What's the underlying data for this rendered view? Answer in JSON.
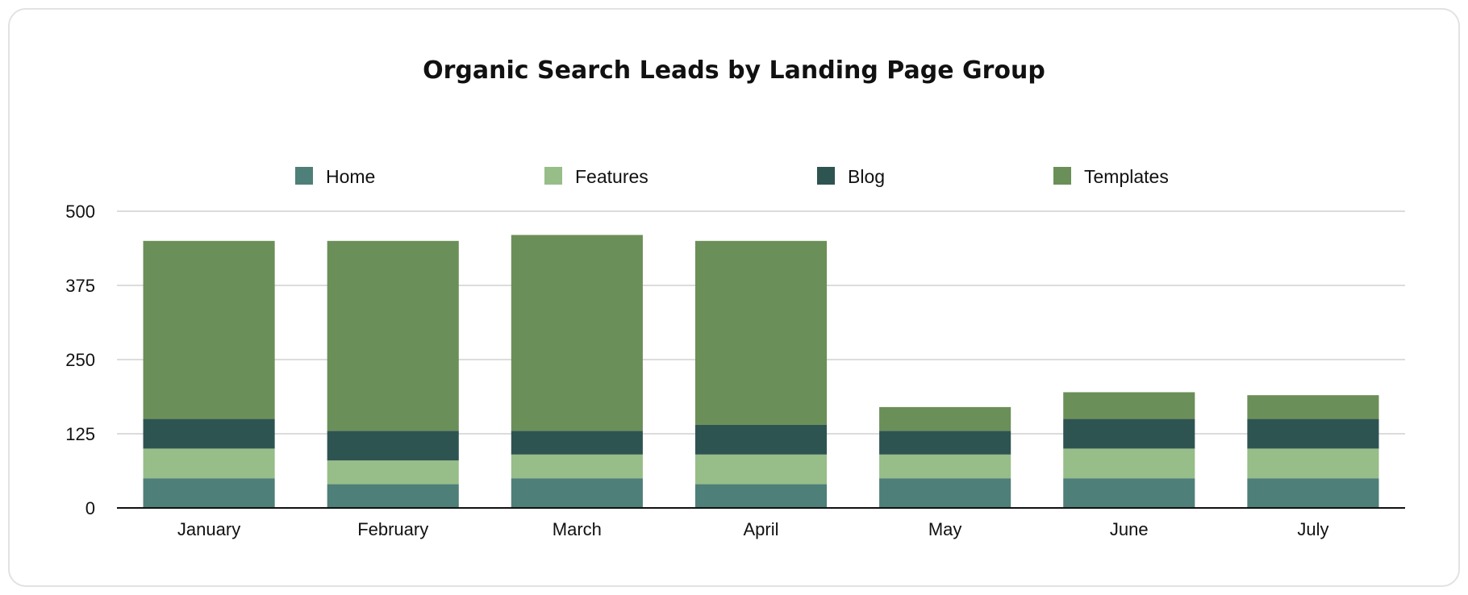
{
  "chart_data": {
    "type": "bar",
    "stacked": true,
    "title": "Organic Search Leads by Landing Page Group",
    "xlabel": "",
    "ylabel": "",
    "categories": [
      "January",
      "February",
      "March",
      "April",
      "May",
      "June",
      "July"
    ],
    "series": [
      {
        "name": "Home",
        "color": "#4e7f79",
        "values": [
          50,
          40,
          50,
          40,
          50,
          50,
          50
        ]
      },
      {
        "name": "Features",
        "color": "#97bd88",
        "values": [
          50,
          40,
          40,
          50,
          40,
          50,
          50
        ]
      },
      {
        "name": "Blog",
        "color": "#2e5452",
        "values": [
          50,
          50,
          40,
          50,
          40,
          50,
          50
        ]
      },
      {
        "name": "Templates",
        "color": "#6b8f58",
        "values": [
          300,
          320,
          330,
          310,
          40,
          45,
          40
        ]
      }
    ],
    "ylim": [
      0,
      500
    ],
    "yticks": [
      0,
      125,
      250,
      375,
      500
    ],
    "grid": true,
    "legend_position": "top"
  }
}
